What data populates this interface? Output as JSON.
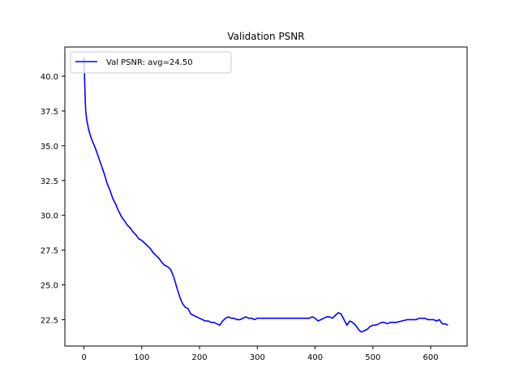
{
  "chart_data": {
    "type": "line",
    "title": "Validation PSNR",
    "xlabel": "",
    "ylabel": "",
    "xlim": [
      -33,
      663
    ],
    "ylim": [
      20.6,
      42.1
    ],
    "x_ticks": [
      0,
      100,
      200,
      300,
      400,
      500,
      600
    ],
    "y_ticks": [
      22.5,
      25.0,
      27.5,
      30.0,
      32.5,
      35.0,
      37.5,
      40.0
    ],
    "x_tick_labels": [
      "0",
      "100",
      "200",
      "300",
      "400",
      "500",
      "600"
    ],
    "y_tick_labels": [
      "22.5",
      "25.0",
      "27.5",
      "30.0",
      "32.5",
      "35.0",
      "37.5",
      "40.0"
    ],
    "grid": false,
    "legend_position": "top-left",
    "series": [
      {
        "name": "Val PSNR: avg=24.50",
        "color": "#0000ff",
        "x": [
          0,
          1,
          2,
          3,
          5,
          8,
          12,
          16,
          20,
          25,
          30,
          35,
          40,
          45,
          50,
          55,
          60,
          65,
          70,
          75,
          80,
          85,
          90,
          95,
          100,
          105,
          110,
          115,
          120,
          125,
          130,
          135,
          140,
          145,
          150,
          155,
          158,
          160,
          163,
          166,
          170,
          175,
          180,
          185,
          190,
          195,
          200,
          205,
          210,
          215,
          220,
          225,
          230,
          235,
          240,
          245,
          250,
          255,
          260,
          265,
          270,
          275,
          280,
          285,
          290,
          295,
          300,
          310,
          320,
          330,
          340,
          350,
          360,
          370,
          380,
          390,
          395,
          400,
          405,
          410,
          415,
          420,
          425,
          430,
          435,
          440,
          445,
          450,
          455,
          460,
          465,
          470,
          475,
          480,
          485,
          490,
          495,
          500,
          505,
          510,
          515,
          520,
          525,
          530,
          540,
          550,
          560,
          570,
          575,
          580,
          585,
          590,
          595,
          600,
          605,
          610,
          615,
          620,
          625,
          630
        ],
        "values": [
          41.4,
          40.0,
          38.6,
          37.5,
          36.8,
          36.2,
          35.6,
          35.2,
          34.8,
          34.2,
          33.6,
          33.0,
          32.3,
          31.8,
          31.2,
          30.8,
          30.3,
          29.9,
          29.6,
          29.3,
          29.1,
          28.8,
          28.6,
          28.3,
          28.2,
          28.0,
          27.8,
          27.6,
          27.3,
          27.1,
          26.9,
          26.6,
          26.4,
          26.3,
          26.1,
          25.6,
          25.2,
          24.9,
          24.5,
          24.1,
          23.7,
          23.4,
          23.3,
          22.9,
          22.8,
          22.7,
          22.6,
          22.5,
          22.4,
          22.4,
          22.3,
          22.3,
          22.2,
          22.1,
          22.4,
          22.6,
          22.7,
          22.6,
          22.6,
          22.5,
          22.5,
          22.6,
          22.7,
          22.6,
          22.6,
          22.5,
          22.6,
          22.6,
          22.6,
          22.6,
          22.6,
          22.6,
          22.6,
          22.6,
          22.6,
          22.6,
          22.7,
          22.6,
          22.4,
          22.5,
          22.6,
          22.7,
          22.7,
          22.6,
          22.8,
          23.0,
          22.9,
          22.5,
          22.1,
          22.4,
          22.3,
          22.1,
          21.8,
          21.6,
          21.7,
          21.8,
          22.0,
          22.1,
          22.1,
          22.2,
          22.3,
          22.3,
          22.2,
          22.3,
          22.3,
          22.4,
          22.5,
          22.5,
          22.5,
          22.6,
          22.6,
          22.6,
          22.5,
          22.5,
          22.5,
          22.4,
          22.5,
          22.2,
          22.2,
          22.1
        ]
      }
    ]
  }
}
